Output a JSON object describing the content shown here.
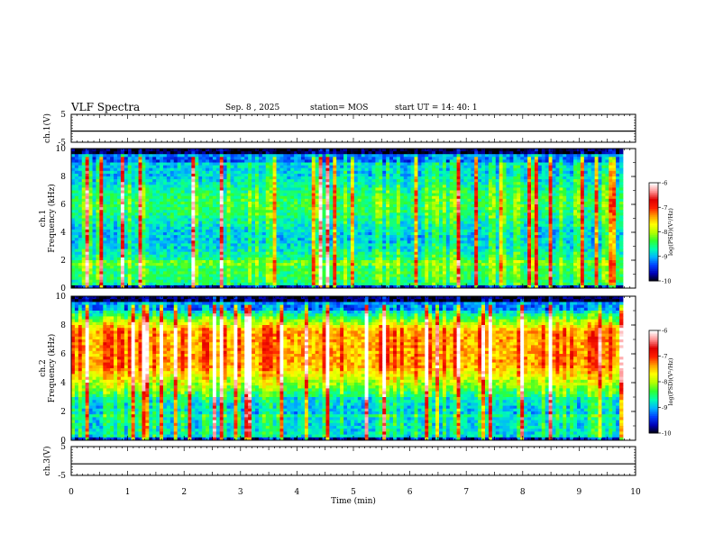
{
  "header": {
    "title": "VLF Spectra",
    "date": "Sep. 8  , 2025",
    "station": "station= MOS",
    "start": "start  UT  =   14: 40: 1"
  },
  "colors": {
    "background": "#ffffff",
    "axis": "#000000",
    "colormap": [
      "#000000",
      "#0000b4",
      "#0040ff",
      "#00b4ff",
      "#00ffb0",
      "#30ff30",
      "#b4ff00",
      "#ffff00",
      "#ffa000",
      "#ff2000",
      "#e00000",
      "#ff9090",
      "#ffffff"
    ]
  },
  "chart_data": [
    {
      "type": "line",
      "panel": "ch1-waveform",
      "ylabel": "ch.1(V)",
      "ylim": [
        -5,
        5
      ],
      "yticks": [
        5,
        -5
      ],
      "x": [
        0,
        10
      ],
      "y": [
        -1,
        -1
      ]
    },
    {
      "type": "heatmap",
      "panel": "ch1-spectrogram",
      "ylabel": "ch.1\nFrequency  (kHz)",
      "ylim": [
        0,
        10
      ],
      "yticks": [
        0,
        2,
        4,
        6,
        8,
        10
      ],
      "xlim": [
        0,
        10
      ],
      "colorbar": {
        "label": "log(PSD)(V²/Hz)",
        "range": [
          -10,
          -6
        ],
        "ticks": [
          -6,
          -7,
          -8,
          -9,
          -10
        ]
      }
    },
    {
      "type": "heatmap",
      "panel": "ch2-spectrogram",
      "ylabel": "ch.2\nFrequency  (kHz)",
      "ylim": [
        0,
        10
      ],
      "yticks": [
        0,
        2,
        4,
        6,
        8,
        10
      ],
      "xlim": [
        0,
        10
      ],
      "colorbar": {
        "label": "log(PSD)(V²/Hz)",
        "range": [
          -10,
          -6
        ],
        "ticks": [
          -6,
          -7,
          -8,
          -9,
          -10
        ]
      }
    },
    {
      "type": "line",
      "panel": "ch3-waveform",
      "ylabel": "ch.3(V)",
      "ylim": [
        -5,
        5
      ],
      "yticks": [
        5,
        -5
      ],
      "x": [
        0,
        10
      ],
      "y": [
        -1,
        -1
      ],
      "xlabel": "Time  (min)",
      "xlim": [
        0,
        10
      ],
      "xticks": [
        0,
        1,
        2,
        3,
        4,
        5,
        6,
        7,
        8,
        9,
        10
      ]
    }
  ]
}
